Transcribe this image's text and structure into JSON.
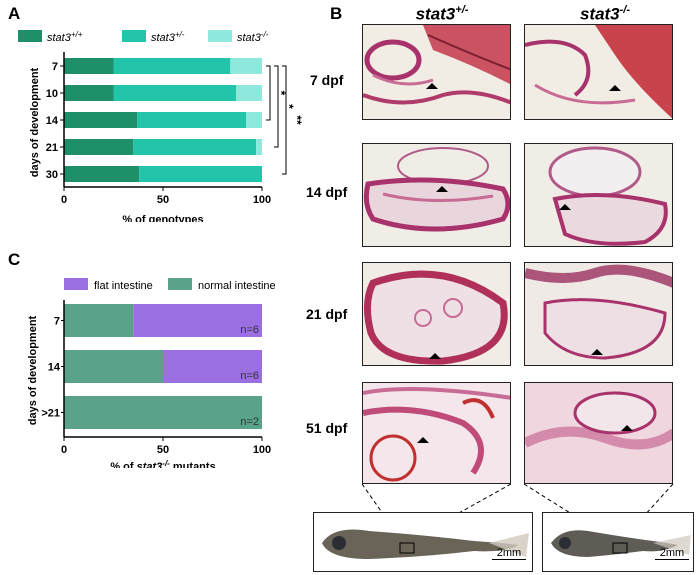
{
  "panels": {
    "A_label": "A",
    "B_label": "B",
    "C_label": "C"
  },
  "colors": {
    "wt": "#1f8f6a",
    "het": "#22c4aa",
    "mut": "#8fe8dc",
    "flat": "#9b6fe0",
    "normal": "#5aa38a"
  },
  "chart_data": [
    {
      "type": "bar",
      "orientation": "horizontal-stacked",
      "categories": [
        "7",
        "10",
        "14",
        "21",
        "30"
      ],
      "series": [
        {
          "name": "stat3+/+",
          "values": [
            25,
            25,
            37,
            35,
            38
          ]
        },
        {
          "name": "stat3+/-",
          "values": [
            59,
            62,
            55,
            62,
            62
          ]
        },
        {
          "name": "stat3-/-",
          "values": [
            16,
            13,
            8,
            3,
            0
          ]
        }
      ],
      "legend": [
        {
          "base": "stat3",
          "sup": "+/+"
        },
        {
          "base": "stat3",
          "sup": "+/-"
        },
        {
          "base": "stat3",
          "sup": "-/-"
        }
      ],
      "xlabel": "% of genotypes",
      "ylabel": "days of development",
      "xlim": [
        0,
        100
      ],
      "xticks": [
        "0",
        "50",
        "100"
      ],
      "significance": [
        "*",
        "*",
        "**"
      ],
      "legend_position": "top"
    },
    {
      "type": "bar",
      "orientation": "horizontal-stacked",
      "categories": [
        "7",
        "14",
        ">21"
      ],
      "series": [
        {
          "name": "normal intestine",
          "values": [
            35,
            50,
            100
          ]
        },
        {
          "name": "flat intestine",
          "values": [
            65,
            50,
            0
          ]
        }
      ],
      "legend": [
        "flat intestine",
        "normal intestine"
      ],
      "bar_labels": [
        "n=6",
        "n=6",
        "n=2"
      ],
      "xlabel_parts": [
        "% of ",
        "stat3",
        "-/-",
        " mutants"
      ],
      "ylabel": "days of development",
      "xlim": [
        0,
        100
      ],
      "xticks": [
        "0",
        "50",
        "100"
      ],
      "legend_position": "top"
    }
  ],
  "panelB": {
    "col_heads": [
      {
        "base": "stat3",
        "sup": "+/-"
      },
      {
        "base": "stat3",
        "sup": "-/-"
      }
    ],
    "rows": [
      "7 dpf",
      "14 dpf",
      "21 dpf",
      "51 dpf"
    ],
    "scale_label": "2mm"
  }
}
